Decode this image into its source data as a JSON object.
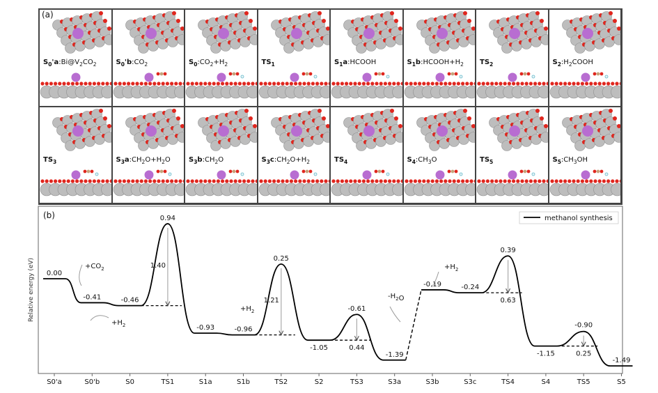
{
  "panel_a": {
    "tag": "(a)",
    "cells": [
      {
        "id": "S0'a",
        "rest": ":Bi@V2CO2"
      },
      {
        "id": "S0'b",
        "rest": ":CO2"
      },
      {
        "id": "S0",
        "rest": ":CO2+H2"
      },
      {
        "id": "TS1",
        "rest": ""
      },
      {
        "id": "S1a",
        "rest": ":HCOOH"
      },
      {
        "id": "S1b",
        "rest": ":HCOOH+H2"
      },
      {
        "id": "TS2",
        "rest": ""
      },
      {
        "id": "S2",
        "rest": ":H2COOH"
      },
      {
        "id": "TS3",
        "rest": ""
      },
      {
        "id": "S3a",
        "rest": ":CH2O+H2O"
      },
      {
        "id": "S3b",
        "rest": ":CH2O"
      },
      {
        "id": "S3c",
        "rest": ":CH2O+H2"
      },
      {
        "id": "TS4",
        "rest": ""
      },
      {
        "id": "S4",
        "rest": ":CH3O"
      },
      {
        "id": "TS5",
        "rest": ""
      },
      {
        "id": "S5",
        "rest": ":CH3OH"
      }
    ]
  },
  "panel_b": {
    "tag": "(b)",
    "legend": "methanol synthesis",
    "ylabel": "Relative energy (eV)",
    "annotations": [
      {
        "text": "+CO2",
        "kind": "label"
      },
      {
        "text": "+H2",
        "kind": "label"
      },
      {
        "text": "+H2",
        "kind": "label"
      },
      {
        "text": "-H2O",
        "kind": "label"
      },
      {
        "text": "+H2",
        "kind": "label"
      }
    ],
    "barriers": [
      "1.40",
      "1.21",
      "0.44",
      "0.63",
      "0.25"
    ]
  },
  "chart_data": {
    "type": "line",
    "xlabel": "",
    "ylabel": "Relative energy (eV)",
    "categories": [
      "S0'a",
      "S0'b",
      "S0",
      "TS1",
      "S1a",
      "S1b",
      "TS2",
      "S2",
      "TS3",
      "S3a",
      "S3b",
      "S3c",
      "TS4",
      "S4",
      "TS5",
      "S5"
    ],
    "series": [
      {
        "name": "methanol synthesis",
        "values": [
          0.0,
          -0.41,
          -0.46,
          0.94,
          -0.93,
          -0.96,
          0.25,
          -1.05,
          -0.61,
          -1.39,
          -0.19,
          -0.24,
          0.39,
          -1.15,
          -0.9,
          -1.49
        ],
        "labels": [
          "0.00",
          "-0.41",
          "-0.46",
          "0.94",
          "-0.93",
          "-0.96",
          "0.25",
          "-1.05",
          "-0.61",
          "-1.39",
          "-0.19",
          "-0.24",
          "0.39",
          "-1.15",
          "-0.90",
          "-1.49"
        ]
      }
    ],
    "barrier_values": [
      1.4,
      1.21,
      0.44,
      0.63,
      0.25
    ],
    "ylim": [
      -1.7,
      1.1
    ],
    "legend": "top-right",
    "grid": false
  },
  "colors": {
    "line": "#000000",
    "oxygen": "#e0261e",
    "surface_atom": "#bdbdbd",
    "bismuth": "#b86dd1",
    "hydrogen": "#e8f4f7",
    "carbon": "#c4a27a",
    "arrow": "#9a9a9a"
  }
}
